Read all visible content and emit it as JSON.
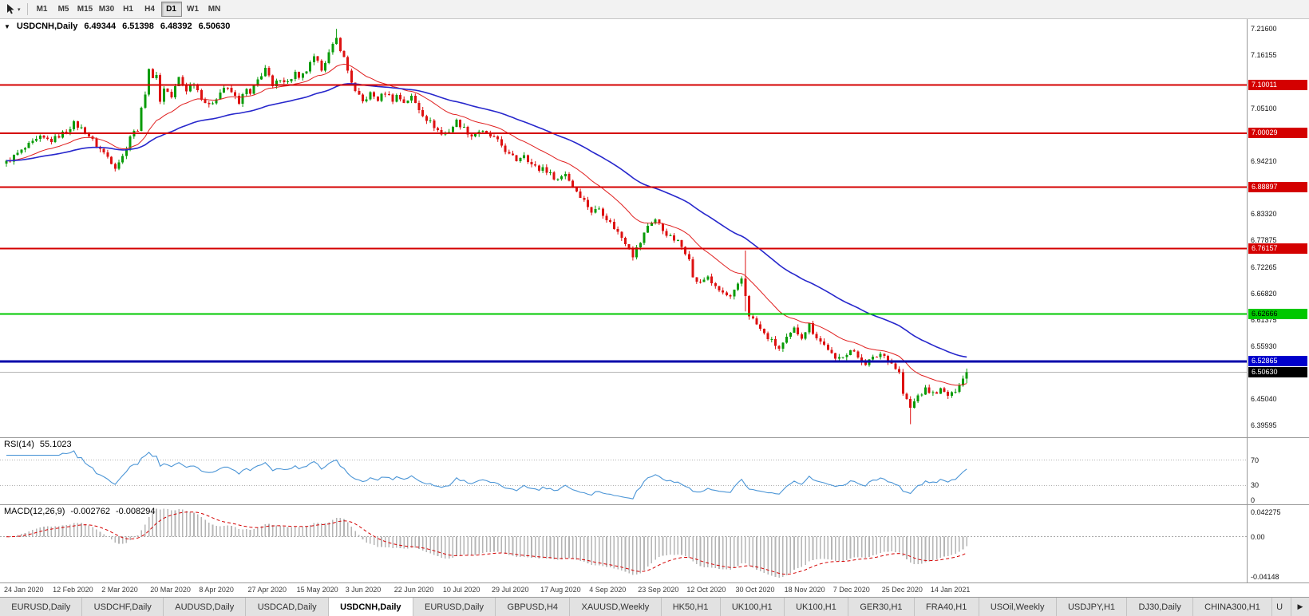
{
  "toolbar": {
    "dropdown_caret": "▾",
    "timeframes": [
      {
        "label": "M1",
        "active": false
      },
      {
        "label": "M5",
        "active": false
      },
      {
        "label": "M15",
        "active": false
      },
      {
        "label": "M30",
        "active": false
      },
      {
        "label": "H1",
        "active": false
      },
      {
        "label": "H4",
        "active": false
      },
      {
        "label": "D1",
        "active": true
      },
      {
        "label": "W1",
        "active": false
      },
      {
        "label": "MN",
        "active": false
      }
    ]
  },
  "chart_header": {
    "collapse_icon": "▼",
    "symbol": "USDCNH,Daily",
    "open": "6.49344",
    "high": "6.51398",
    "low": "6.48392",
    "close": "6.50630"
  },
  "indicators": {
    "rsi_name": "RSI(14)",
    "rsi_value": "55.1023",
    "macd_name": "MACD(12,26,9)",
    "macd_main": "-0.002762",
    "macd_signal": "-0.008294"
  },
  "tabbar": {
    "scroll_right": "▶",
    "tabs": [
      {
        "label": "EURUSD,Daily",
        "active": false
      },
      {
        "label": "USDCHF,Daily",
        "active": false
      },
      {
        "label": "AUDUSD,Daily",
        "active": false
      },
      {
        "label": "USDCAD,Daily",
        "active": false
      },
      {
        "label": "USDCNH,Daily",
        "active": true
      },
      {
        "label": "EURUSD,Daily",
        "active": false
      },
      {
        "label": "GBPUSD,H4",
        "active": false
      },
      {
        "label": "XAUUSD,Weekly",
        "active": false
      },
      {
        "label": "HK50,H1",
        "active": false
      },
      {
        "label": "UK100,H1",
        "active": false
      },
      {
        "label": "UK100,H1",
        "active": false
      },
      {
        "label": "GER30,H1",
        "active": false
      },
      {
        "label": "FRA40,H1",
        "active": false
      },
      {
        "label": "USOil,Weekly",
        "active": false
      },
      {
        "label": "USDJPY,H1",
        "active": false
      },
      {
        "label": "DJ30,Daily",
        "active": false
      },
      {
        "label": "CHINA300,H1",
        "active": false
      },
      {
        "label": "U",
        "active": false
      }
    ]
  },
  "chart_data": {
    "type": "candlestick",
    "symbol": "USDCNH",
    "period": "Daily",
    "bars": 257,
    "x_label_step": 13,
    "x_labels": [
      "24 Jan 2020",
      "12 Feb 2020",
      "2 Mar 2020",
      "20 Mar 2020",
      "8 Apr 2020",
      "27 Apr 2020",
      "15 May 2020",
      "3 Jun 2020",
      "22 Jun 2020",
      "10 Jul 2020",
      "29 Jul 2020",
      "17 Aug 2020",
      "4 Sep 2020",
      "23 Sep 2020",
      "12 Oct 2020",
      "30 Oct 2020",
      "18 Nov 2020",
      "7 Dec 2020",
      "25 Dec 2020",
      "14 Jan 2021"
    ],
    "price_axis": {
      "min": 6.372,
      "max": 7.236,
      "ticks": [
        7.216,
        7.16155,
        7.051,
        6.9421,
        6.8332,
        6.77875,
        6.72265,
        6.6682,
        6.61375,
        6.5593,
        6.4504,
        6.39595
      ]
    },
    "close_anchors": [
      [
        0,
        6.94
      ],
      [
        3,
        6.958
      ],
      [
        6,
        6.975
      ],
      [
        9,
        6.99
      ],
      [
        12,
        6.985
      ],
      [
        15,
        7.0
      ],
      [
        18,
        7.02
      ],
      [
        21,
        7.005
      ],
      [
        24,
        6.975
      ],
      [
        27,
        6.952
      ],
      [
        29,
        6.932
      ],
      [
        31,
        6.952
      ],
      [
        33,
        6.995
      ],
      [
        35,
        7.01
      ],
      [
        37,
        7.085
      ],
      [
        38,
        7.135
      ],
      [
        39,
        7.11
      ],
      [
        40,
        7.125
      ],
      [
        41,
        7.065
      ],
      [
        42,
        7.095
      ],
      [
        44,
        7.075
      ],
      [
        46,
        7.115
      ],
      [
        48,
        7.09
      ],
      [
        50,
        7.105
      ],
      [
        52,
        7.075
      ],
      [
        54,
        7.055
      ],
      [
        56,
        7.075
      ],
      [
        58,
        7.095
      ],
      [
        60,
        7.085
      ],
      [
        62,
        7.065
      ],
      [
        64,
        7.09
      ],
      [
        65,
        7.08
      ],
      [
        67,
        7.11
      ],
      [
        69,
        7.135
      ],
      [
        71,
        7.095
      ],
      [
        73,
        7.115
      ],
      [
        75,
        7.105
      ],
      [
        77,
        7.125
      ],
      [
        78,
        7.11
      ],
      [
        80,
        7.13
      ],
      [
        82,
        7.155
      ],
      [
        84,
        7.135
      ],
      [
        86,
        7.165
      ],
      [
        88,
        7.195
      ],
      [
        90,
        7.155
      ],
      [
        91,
        7.13
      ],
      [
        93,
        7.085
      ],
      [
        95,
        7.065
      ],
      [
        97,
        7.082
      ],
      [
        99,
        7.07
      ],
      [
        101,
        7.085
      ],
      [
        103,
        7.07
      ],
      [
        104,
        7.078
      ],
      [
        106,
        7.065
      ],
      [
        108,
        7.075
      ],
      [
        110,
        7.05
      ],
      [
        112,
        7.03
      ],
      [
        114,
        7.015
      ],
      [
        116,
        6.998
      ],
      [
        118,
        7.005
      ],
      [
        120,
        7.025
      ],
      [
        122,
        7.01
      ],
      [
        124,
        6.995
      ],
      [
        126,
        7.005
      ],
      [
        128,
        6.998
      ],
      [
        130,
        6.99
      ],
      [
        132,
        6.975
      ],
      [
        134,
        6.955
      ],
      [
        136,
        6.945
      ],
      [
        138,
        6.958
      ],
      [
        140,
        6.935
      ],
      [
        142,
        6.925
      ],
      [
        143,
        6.93
      ],
      [
        145,
        6.915
      ],
      [
        147,
        6.905
      ],
      [
        149,
        6.918
      ],
      [
        151,
        6.89
      ],
      [
        153,
        6.872
      ],
      [
        155,
        6.85
      ],
      [
        156,
        6.838
      ],
      [
        158,
        6.845
      ],
      [
        160,
        6.825
      ],
      [
        162,
        6.805
      ],
      [
        164,
        6.785
      ],
      [
        166,
        6.765
      ],
      [
        167,
        6.748
      ],
      [
        169,
        6.775
      ],
      [
        171,
        6.81
      ],
      [
        173,
        6.822
      ],
      [
        175,
        6.8
      ],
      [
        177,
        6.785
      ],
      [
        179,
        6.775
      ],
      [
        181,
        6.755
      ],
      [
        182,
        6.745
      ],
      [
        183,
        6.7
      ],
      [
        185,
        6.69
      ],
      [
        187,
        6.705
      ],
      [
        189,
        6.68
      ],
      [
        191,
        6.67
      ],
      [
        193,
        6.66
      ],
      [
        195,
        6.685
      ],
      [
        196,
        6.7
      ],
      [
        197,
        6.665
      ],
      [
        198,
        6.625
      ],
      [
        200,
        6.605
      ],
      [
        202,
        6.585
      ],
      [
        204,
        6.57
      ],
      [
        206,
        6.555
      ],
      [
        208,
        6.575
      ],
      [
        210,
        6.595
      ],
      [
        212,
        6.58
      ],
      [
        214,
        6.605
      ],
      [
        215,
        6.59
      ],
      [
        217,
        6.57
      ],
      [
        219,
        6.555
      ],
      [
        221,
        6.53
      ],
      [
        223,
        6.542
      ],
      [
        225,
        6.552
      ],
      [
        227,
        6.538
      ],
      [
        229,
        6.525
      ],
      [
        231,
        6.535
      ],
      [
        233,
        6.545
      ],
      [
        234,
        6.54
      ],
      [
        236,
        6.525
      ],
      [
        238,
        6.505
      ],
      [
        239,
        6.462
      ],
      [
        240,
        6.448
      ],
      [
        241,
        6.432
      ],
      [
        243,
        6.458
      ],
      [
        245,
        6.47
      ],
      [
        247,
        6.462
      ],
      [
        249,
        6.472
      ],
      [
        251,
        6.458
      ],
      [
        253,
        6.468
      ],
      [
        255,
        6.4934
      ],
      [
        256,
        6.5063
      ]
    ],
    "special_bars": {
      "88": {
        "h": 7.216
      },
      "197": {
        "h": 6.758,
        "l": 6.632
      },
      "241": {
        "l": 6.399
      },
      "256": {
        "o": 6.49344,
        "h": 6.51398,
        "l": 6.48392,
        "c": 6.5063
      }
    },
    "h_lines": [
      {
        "price": 7.10011,
        "label": "7.10011",
        "color": "#d40000",
        "width": 2,
        "bg": "#d40000",
        "fg": "#ffffff"
      },
      {
        "price": 7.00029,
        "label": "7.00029",
        "color": "#d40000",
        "width": 2,
        "bg": "#d40000",
        "fg": "#ffffff"
      },
      {
        "price": 6.88897,
        "label": "6.88897",
        "color": "#d40000",
        "width": 2,
        "bg": "#d40000",
        "fg": "#ffffff"
      },
      {
        "price": 6.76157,
        "label": "6.76157",
        "color": "#d40000",
        "width": 2,
        "bg": "#d40000",
        "fg": "#ffffff"
      },
      {
        "price": 6.62666,
        "label": "6.62666",
        "color": "#00c800",
        "width": 2,
        "bg": "#00c800",
        "fg": "#000000"
      },
      {
        "price": 6.52865,
        "label": "6.52865",
        "color": "#0000aa",
        "width": 3,
        "bg": "#0000cc",
        "fg": "#ffffff"
      },
      {
        "price": 6.5063,
        "label": "6.50630",
        "color": "#b4b4b4",
        "width": 1,
        "bg": "#000000",
        "fg": "#ffffff"
      }
    ],
    "moving_averages": [
      {
        "period": 20,
        "color": "#e02020",
        "width": 1
      },
      {
        "period": 55,
        "color": "#2727cc",
        "width": 1.6
      }
    ],
    "up_color": "#089b08",
    "down_color": "#dd1111",
    "rsi": {
      "period": 14,
      "color": "#4b95d6",
      "levels": [
        70,
        30
      ],
      "scale_labels": [
        "70",
        "30",
        "0"
      ],
      "range_max": 105
    },
    "macd": {
      "fast": 12,
      "slow": 26,
      "signal": 9,
      "hist_color": "#b5b5b5",
      "signal_color": "#d40000",
      "scale_top": "0.042275",
      "scale_zero": "0.00",
      "scale_bottom": "-0.04148"
    }
  }
}
